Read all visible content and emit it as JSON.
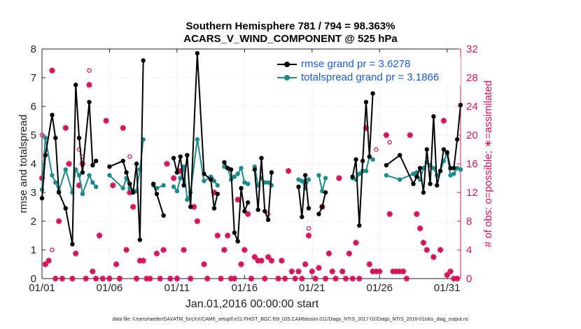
{
  "page": {
    "title_line1": "Southern Hemisphere 781 / 794 = 98.363%",
    "title_line2": "ACARS_V_WIND_COMPONENT @ 525 hPa",
    "x_start_label": "Jan.01,2016 00:00:00 start",
    "footer": "data file: /Users/raeder/DAI/ATM_forcXX/CAM6_setup/f.e21.FHIST_BGC.f09_025.CAM6assim.011/Diags_NTrS_2017-02/Diags_NTrS_2016-01/obs_diag_output.nc"
  },
  "chart_data": {
    "type": "line",
    "x_ticks": [
      "01/01",
      "01/06",
      "01/11",
      "01/16",
      "01/21",
      "01/26",
      "01/31"
    ],
    "x_tick_days": [
      1,
      6,
      11,
      16,
      21,
      26,
      31
    ],
    "xlim": [
      1,
      32
    ],
    "ylabel_left": "rmse and totalspread",
    "ylabel_right": "# of obs: o=possible; ∗=assimilated",
    "ylim_left": [
      0,
      8
    ],
    "ylim_right": [
      0,
      32
    ],
    "yticks_left": [
      "0",
      "1",
      "2",
      "3",
      "4",
      "5",
      "6",
      "7",
      "8"
    ],
    "yticks_right": [
      "0",
      "4",
      "8",
      "12",
      "16",
      "20",
      "24",
      "28",
      "32"
    ],
    "grid": true,
    "legend_position": "top-right",
    "colors": {
      "rmse": "#000000",
      "spread": "#1a8a8a",
      "obs": "#d4145a",
      "legend_text": "#1f5bd6",
      "right_axis": "#d4145a"
    },
    "series": [
      {
        "name": "rmse grand pr = 3.6278",
        "points": [
          [
            1.0,
            2.8
          ],
          [
            1.25,
            4.3
          ],
          [
            1.75,
            5.7
          ],
          [
            2.0,
            4.9
          ],
          [
            2.25,
            3.0
          ],
          [
            2.75,
            2.45
          ],
          [
            3.25,
            1.2
          ],
          [
            3.5,
            6.75
          ],
          [
            3.75,
            4.9
          ],
          [
            4.0,
            3.7
          ],
          [
            4.5,
            6.15
          ],
          [
            4.75,
            3.95
          ],
          [
            5.0,
            4.1
          ],
          [
            null,
            null
          ],
          [
            6.0,
            3.9
          ],
          [
            7.0,
            4.1
          ],
          [
            7.25,
            3.7
          ],
          [
            7.5,
            3.3
          ],
          [
            7.75,
            3.0
          ],
          [
            8.0,
            4.0
          ],
          [
            8.25,
            1.35
          ],
          [
            8.5,
            7.6
          ],
          [
            null,
            null
          ],
          [
            9.25,
            3.3
          ],
          [
            9.5,
            2.95
          ],
          [
            10.0,
            2.2
          ],
          [
            null,
            null
          ],
          [
            10.75,
            4.2
          ],
          [
            11.0,
            3.7
          ],
          [
            11.25,
            4.25
          ],
          [
            11.5,
            3.25
          ],
          [
            11.75,
            4.3
          ],
          [
            12.0,
            2.5
          ],
          [
            12.5,
            7.85
          ],
          [
            13.0,
            3.65
          ],
          [
            13.5,
            3.45
          ],
          [
            13.75,
            2.45
          ],
          [
            14.0,
            2.95
          ],
          [
            null,
            null
          ],
          [
            14.5,
            4.05
          ],
          [
            14.75,
            3.85
          ],
          [
            15.0,
            3.8
          ],
          [
            15.25,
            1.6
          ],
          [
            15.5,
            1.3
          ],
          [
            15.75,
            3.15
          ],
          [
            16.0,
            2.35
          ],
          [
            16.25,
            2.65
          ],
          [
            null,
            null
          ],
          [
            16.75,
            3.8
          ],
          [
            17.0,
            2.4
          ],
          [
            17.25,
            4.2
          ],
          [
            17.5,
            2.35
          ],
          [
            17.75,
            2.05
          ],
          [
            18.0,
            3.7
          ],
          [
            null,
            null
          ],
          [
            20.0,
            3.2
          ],
          [
            20.25,
            2.15
          ],
          [
            20.5,
            3.6
          ],
          [
            20.75,
            2.45
          ],
          [
            null,
            null
          ],
          [
            21.5,
            2.25
          ],
          [
            21.75,
            2.5
          ],
          [
            22.0,
            3.0
          ],
          [
            null,
            null
          ],
          [
            24.0,
            3.55
          ],
          [
            24.25,
            4.15
          ],
          [
            24.5,
            1.85
          ],
          [
            24.75,
            4.1
          ],
          [
            25.0,
            6.15
          ],
          [
            25.25,
            4.25
          ],
          [
            25.5,
            6.45
          ],
          [
            null,
            null
          ],
          [
            26.5,
            3.95
          ],
          [
            27.5,
            4.3
          ],
          [
            28.5,
            3.3
          ],
          [
            28.75,
            3.55
          ],
          [
            29.0,
            3.85
          ],
          [
            29.25,
            3.0
          ],
          [
            29.5,
            4.5
          ],
          [
            29.75,
            3.3
          ],
          [
            30.0,
            5.65
          ],
          [
            30.25,
            3.25
          ],
          [
            30.5,
            3.75
          ],
          [
            30.75,
            4.5
          ],
          [
            31.0,
            4.4
          ],
          [
            31.25,
            3.85
          ],
          [
            31.5,
            3.85
          ],
          [
            31.75,
            4.85
          ],
          [
            32.0,
            6.05
          ]
        ]
      },
      {
        "name": "totalspread grand pr = 3.1866",
        "points": [
          [
            1.0,
            3.1
          ],
          [
            1.25,
            4.9
          ],
          [
            1.75,
            3.6
          ],
          [
            2.0,
            3.35
          ],
          [
            2.25,
            3.05
          ],
          [
            2.75,
            3.8
          ],
          [
            3.25,
            3.0
          ],
          [
            3.5,
            3.8
          ],
          [
            3.75,
            3.6
          ],
          [
            4.0,
            2.95
          ],
          [
            4.5,
            3.6
          ],
          [
            4.75,
            3.35
          ],
          [
            5.0,
            3.2
          ],
          [
            null,
            null
          ],
          [
            6.0,
            3.6
          ],
          [
            7.0,
            3.15
          ],
          [
            7.25,
            3.5
          ],
          [
            7.5,
            3.15
          ],
          [
            7.75,
            3.05
          ],
          [
            8.0,
            3.05
          ],
          [
            8.25,
            3.8
          ],
          [
            8.5,
            4.85
          ],
          [
            null,
            null
          ],
          [
            9.25,
            3.25
          ],
          [
            9.5,
            3.15
          ],
          [
            10.0,
            3.25
          ],
          [
            null,
            null
          ],
          [
            10.75,
            3.2
          ],
          [
            11.0,
            3.05
          ],
          [
            11.25,
            3.5
          ],
          [
            11.5,
            3.9
          ],
          [
            11.75,
            2.75
          ],
          [
            12.0,
            3.0
          ],
          [
            12.5,
            4.85
          ],
          [
            13.0,
            3.4
          ],
          [
            13.5,
            3.55
          ],
          [
            13.75,
            3.4
          ],
          [
            14.0,
            3.25
          ],
          [
            null,
            null
          ],
          [
            14.5,
            3.9
          ],
          [
            14.75,
            3.85
          ],
          [
            15.0,
            3.45
          ],
          [
            15.25,
            3.55
          ],
          [
            15.5,
            3.65
          ],
          [
            15.75,
            3.85
          ],
          [
            16.0,
            3.35
          ],
          [
            16.25,
            3.3
          ],
          [
            null,
            null
          ],
          [
            16.75,
            3.9
          ],
          [
            17.0,
            3.25
          ],
          [
            17.25,
            3.5
          ],
          [
            17.5,
            3.35
          ],
          [
            17.75,
            3.35
          ],
          [
            18.0,
            3.25
          ],
          [
            null,
            null
          ],
          [
            20.0,
            3.45
          ],
          [
            20.25,
            3.4
          ],
          [
            20.5,
            3.15
          ],
          [
            20.75,
            3.45
          ],
          [
            null,
            null
          ],
          [
            21.5,
            3.6
          ],
          [
            21.75,
            3.05
          ],
          [
            22.0,
            3.5
          ],
          [
            null,
            null
          ],
          [
            24.0,
            3.5
          ],
          [
            24.25,
            3.45
          ],
          [
            24.5,
            3.65
          ],
          [
            24.75,
            3.75
          ],
          [
            25.0,
            3.75
          ],
          [
            25.25,
            4.25
          ],
          [
            25.5,
            4.15
          ],
          [
            null,
            null
          ],
          [
            26.5,
            3.6
          ],
          [
            27.5,
            3.45
          ],
          [
            28.5,
            3.65
          ],
          [
            28.75,
            3.7
          ],
          [
            29.0,
            3.45
          ],
          [
            29.25,
            3.85
          ],
          [
            29.5,
            4.05
          ],
          [
            29.75,
            3.95
          ],
          [
            30.0,
            3.85
          ],
          [
            30.25,
            3.6
          ],
          [
            30.5,
            3.75
          ],
          [
            30.75,
            4.1
          ],
          [
            31.0,
            4.35
          ],
          [
            31.25,
            3.6
          ],
          [
            31.5,
            3.65
          ],
          [
            31.75,
            3.85
          ],
          [
            32.0,
            3.8
          ]
        ]
      },
      {
        "name": "assimilated",
        "points": [
          [
            1.0,
            14
          ],
          [
            1.25,
            2
          ],
          [
            1.5,
            2.5
          ],
          [
            1.75,
            29
          ],
          [
            2.0,
            0
          ],
          [
            2.25,
            8
          ],
          [
            2.5,
            0
          ],
          [
            2.75,
            21
          ],
          [
            3.0,
            16
          ],
          [
            3.25,
            0
          ],
          [
            3.5,
            3.5
          ],
          [
            3.75,
            13
          ],
          [
            4.0,
            16
          ],
          [
            4.25,
            0
          ],
          [
            4.5,
            27
          ],
          [
            4.75,
            1
          ],
          [
            5.0,
            0
          ],
          [
            5.25,
            6
          ],
          [
            5.5,
            0
          ],
          [
            5.75,
            22
          ],
          [
            6.0,
            0
          ],
          [
            6.25,
            13
          ],
          [
            6.5,
            2
          ],
          [
            6.75,
            0
          ],
          [
            7.0,
            21
          ],
          [
            7.25,
            4
          ],
          [
            7.5,
            12
          ],
          [
            7.75,
            10
          ],
          [
            8.0,
            0
          ],
          [
            8.25,
            2.5
          ],
          [
            8.5,
            2.5
          ],
          [
            8.75,
            0
          ],
          [
            9.0,
            0
          ],
          [
            9.5,
            3.5
          ],
          [
            9.75,
            0
          ],
          [
            10.0,
            4
          ],
          [
            10.25,
            16
          ],
          [
            10.5,
            0
          ],
          [
            10.75,
            14
          ],
          [
            11.0,
            0
          ],
          [
            11.25,
            15
          ],
          [
            11.5,
            4
          ],
          [
            12.0,
            0
          ],
          [
            12.25,
            10
          ],
          [
            12.5,
            8
          ],
          [
            13.0,
            2
          ],
          [
            13.25,
            0
          ],
          [
            13.5,
            14
          ],
          [
            13.75,
            12
          ],
          [
            14.0,
            6
          ],
          [
            14.25,
            0
          ],
          [
            14.5,
            4
          ],
          [
            14.75,
            6
          ],
          [
            15.0,
            0
          ],
          [
            15.25,
            0
          ],
          [
            15.5,
            11
          ],
          [
            15.75,
            2
          ],
          [
            16.0,
            4
          ],
          [
            16.25,
            9
          ],
          [
            16.5,
            0
          ],
          [
            16.75,
            3
          ],
          [
            17.0,
            2.5
          ],
          [
            17.25,
            2.5
          ],
          [
            17.5,
            0
          ],
          [
            17.75,
            3
          ],
          [
            18.0,
            2.5
          ],
          [
            18.5,
            0
          ],
          [
            18.75,
            2.5
          ],
          [
            19.0,
            0
          ],
          [
            19.25,
            15
          ],
          [
            19.5,
            1
          ],
          [
            19.75,
            0
          ],
          [
            20.0,
            1
          ],
          [
            20.25,
            0
          ],
          [
            20.5,
            2
          ],
          [
            20.75,
            6
          ],
          [
            21.0,
            1
          ],
          [
            21.25,
            0
          ],
          [
            21.5,
            1.5
          ],
          [
            21.75,
            10
          ],
          [
            22.0,
            0
          ],
          [
            22.25,
            3.5
          ],
          [
            22.5,
            1
          ],
          [
            22.75,
            0
          ],
          [
            23.0,
            14
          ],
          [
            23.25,
            1
          ],
          [
            23.5,
            0
          ],
          [
            23.75,
            3.5
          ],
          [
            24.0,
            0
          ],
          [
            24.25,
            5
          ],
          [
            24.5,
            0
          ],
          [
            25.0,
            21
          ],
          [
            25.25,
            2
          ],
          [
            25.5,
            1
          ],
          [
            25.75,
            1
          ],
          [
            26.0,
            1
          ],
          [
            26.5,
            20
          ],
          [
            26.75,
            9
          ],
          [
            27.0,
            1
          ],
          [
            27.25,
            1
          ],
          [
            27.5,
            1
          ],
          [
            27.75,
            1
          ],
          [
            28.0,
            0
          ],
          [
            28.25,
            20
          ],
          [
            28.75,
            9
          ],
          [
            29.0,
            7
          ],
          [
            29.25,
            5
          ],
          [
            29.5,
            4
          ],
          [
            30.0,
            3
          ],
          [
            30.5,
            4
          ],
          [
            30.75,
            22
          ],
          [
            31.0,
            0.5
          ],
          [
            31.25,
            1
          ],
          [
            31.5,
            0
          ],
          [
            31.75,
            0
          ]
        ]
      },
      {
        "name": "possible",
        "points": [
          [
            1.0,
            20
          ],
          [
            1.75,
            4
          ],
          [
            3.75,
            18
          ],
          [
            4.0,
            17
          ],
          [
            4.5,
            29
          ],
          [
            7.5,
            17
          ],
          [
            17.75,
            9
          ],
          [
            20.75,
            7
          ],
          [
            25.75,
            18
          ],
          [
            26.75,
            19
          ]
        ]
      }
    ]
  }
}
